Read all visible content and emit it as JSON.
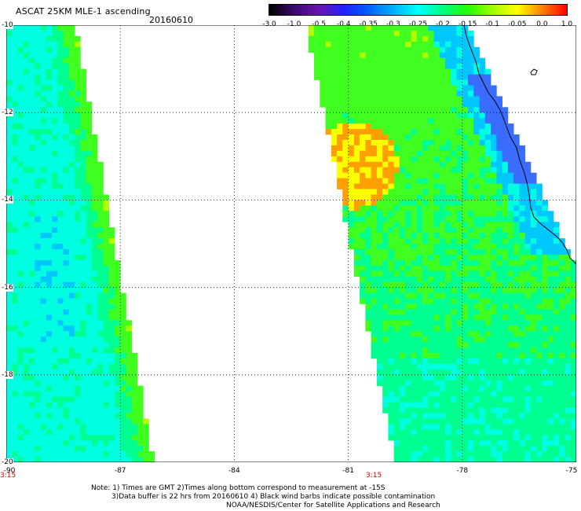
{
  "header": {
    "title": "ASCAT 25KM MLE-1 ascending",
    "date": "20160610"
  },
  "colorbar": {
    "labels": [
      "-3.0",
      "-1.0",
      "-0.5",
      "-0.4",
      "-0.35",
      "-0.3",
      "-0.25",
      "-0.2",
      "-0.15",
      "-0.1",
      "-0.05",
      "0.0",
      "1.0"
    ],
    "colors": [
      "#000000",
      "#3a0a6e",
      "#6a14b4",
      "#2020ff",
      "#0060ff",
      "#00b0ff",
      "#00ffff",
      "#00ff80",
      "#20ff00",
      "#a0ff00",
      "#ffff00",
      "#ff8000",
      "#ff0000"
    ]
  },
  "axes": {
    "latitude_labels": [
      "-10",
      "-12",
      "-14",
      "-16",
      "-18",
      "-20"
    ],
    "longitude_labels": [
      "-90",
      "-87",
      "-84",
      "-81",
      "-78",
      "-75"
    ],
    "lat_range": [
      -20,
      -10
    ],
    "lon_range": [
      -90,
      -75
    ]
  },
  "times": {
    "left": "3:15",
    "right": "3:15"
  },
  "footer": {
    "line1": "Note: 1) Times are GMT 2)Times along bottom correspond to measurement at -15S",
    "line2": "3)Data buffer is 22 hrs from 20160610 4) Black wind barbs indicate possible contamination",
    "line3": "NOAA/NESDIS/Center for Satellite Applications and Research"
  }
}
